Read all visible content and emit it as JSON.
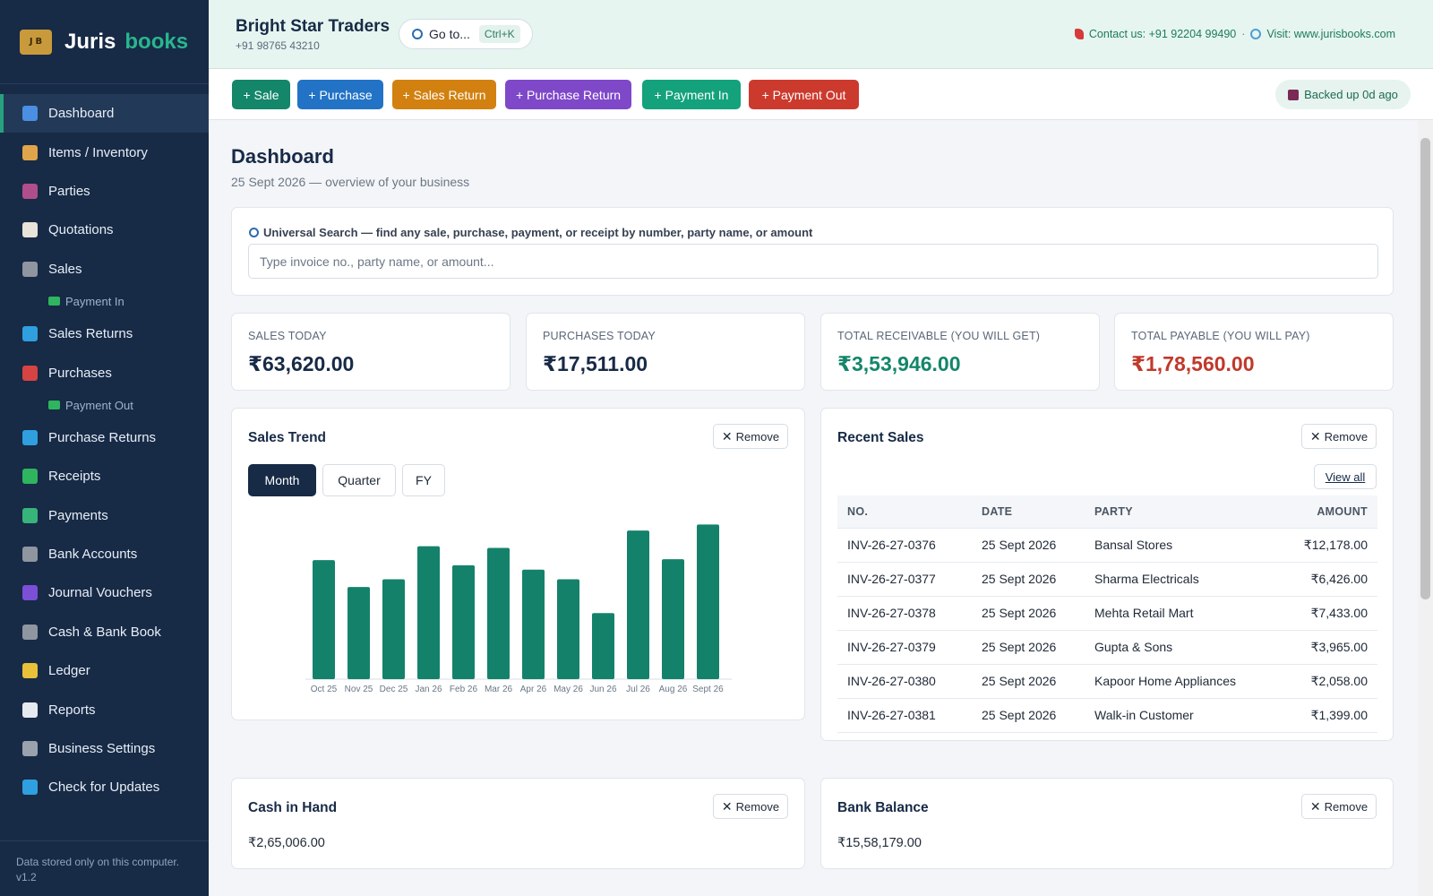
{
  "brand": {
    "name": "Juris",
    "name2": "books"
  },
  "sidebar": {
    "items": [
      {
        "label": "Dashboard",
        "color": "#4b8fe2"
      },
      {
        "label": "Items / Inventory",
        "color": "#e0a54a"
      },
      {
        "label": "Parties",
        "color": "#b04e8c"
      },
      {
        "label": "Quotations",
        "color": "#e8e4da"
      },
      {
        "label": "Sales",
        "color": "#8f96a0"
      },
      {
        "label": "Payment In",
        "sub": true
      },
      {
        "label": "Sales Returns",
        "color": "#2f9fe0"
      },
      {
        "label": "Purchases",
        "color": "#d64343"
      },
      {
        "label": "Payment Out",
        "sub": true
      },
      {
        "label": "Purchase Returns",
        "color": "#2f9fe0"
      },
      {
        "label": "Receipts",
        "color": "#2fb45f"
      },
      {
        "label": "Payments",
        "color": "#37b47a"
      },
      {
        "label": "Bank Accounts",
        "color": "#8f96a0"
      },
      {
        "label": "Journal Vouchers",
        "color": "#7b4fd6"
      },
      {
        "label": "Cash & Bank Book",
        "color": "#8f96a0"
      },
      {
        "label": "Ledger",
        "color": "#e8c03a"
      },
      {
        "label": "Reports",
        "color": "#e6e9ef"
      },
      {
        "label": "Business Settings",
        "color": "#9aa3ad"
      },
      {
        "label": "Check for Updates",
        "color": "#2f9fe0"
      }
    ],
    "footer": "Data stored only on this computer.",
    "version": "v1.2"
  },
  "topbar": {
    "business_name": "Bright Star Traders",
    "business_phone": "+91 98765 43210",
    "goto_label": "Go to...",
    "goto_shortcut": "Ctrl+K",
    "contact": "Contact us: +91 92204 99490",
    "separator": "·",
    "visit": "Visit: www.jurisbooks.com"
  },
  "actions": [
    {
      "label": "+ Sale",
      "color": "#14866a"
    },
    {
      "label": "+ Purchase",
      "color": "#2273c5"
    },
    {
      "label": "+ Sales Return",
      "color": "#d28110"
    },
    {
      "label": "+ Purchase Return",
      "color": "#7f48c9"
    },
    {
      "label": "+ Payment In",
      "color": "#13a27c"
    },
    {
      "label": "+ Payment Out",
      "color": "#cc3a2e"
    }
  ],
  "backup_status": "Backed up 0d ago",
  "page": {
    "title": "Dashboard",
    "subtitle": "25 Sept 2026 — overview of your business"
  },
  "search": {
    "label": "Universal Search — find any sale, purchase, payment, or receipt by number, party name, or amount",
    "placeholder": "Type invoice no., party name, or amount..."
  },
  "kpis": [
    {
      "label": "SALES TODAY",
      "value": "₹63,620.00",
      "color": "#172a46"
    },
    {
      "label": "PURCHASES TODAY",
      "value": "₹17,511.00",
      "color": "#172a46"
    },
    {
      "label": "TOTAL RECEIVABLE (YOU WILL GET)",
      "value": "₹3,53,946.00",
      "color": "#14866a"
    },
    {
      "label": "TOTAL PAYABLE (YOU WILL PAY)",
      "value": "₹1,78,560.00",
      "color": "#c0392b"
    }
  ],
  "sales_trend": {
    "title": "Sales Trend",
    "remove_label": "Remove",
    "tabs": [
      "Month",
      "Quarter",
      "FY"
    ],
    "active_tab": "Month"
  },
  "chart_data": {
    "type": "bar",
    "categories": [
      "Oct 25",
      "Nov 25",
      "Dec 25",
      "Jan 26",
      "Feb 26",
      "Mar 26",
      "Apr 26",
      "May 26",
      "Jun 26",
      "Jul 26",
      "Aug 26",
      "Sept 26"
    ],
    "values": [
      137,
      106,
      115,
      153,
      131,
      151,
      126,
      115,
      76,
      171,
      138,
      178
    ],
    "title": "",
    "xlabel": "",
    "ylabel": "",
    "ylim": [
      0,
      185
    ],
    "bar_color": "#14826a",
    "grid": false,
    "legend": "none"
  },
  "recent_sales": {
    "title": "Recent Sales",
    "remove_label": "Remove",
    "view_all": "View all",
    "columns": [
      "NO.",
      "DATE",
      "PARTY",
      "AMOUNT"
    ],
    "rows": [
      [
        "INV-26-27-0376",
        "25 Sept 2026",
        "Bansal Stores",
        "₹12,178.00"
      ],
      [
        "INV-26-27-0377",
        "25 Sept 2026",
        "Sharma Electricals",
        "₹6,426.00"
      ],
      [
        "INV-26-27-0378",
        "25 Sept 2026",
        "Mehta Retail Mart",
        "₹7,433.00"
      ],
      [
        "INV-26-27-0379",
        "25 Sept 2026",
        "Gupta & Sons",
        "₹3,965.00"
      ],
      [
        "INV-26-27-0380",
        "25 Sept 2026",
        "Kapoor Home Appliances",
        "₹2,058.00"
      ],
      [
        "INV-26-27-0381",
        "25 Sept 2026",
        "Walk-in Customer",
        "₹1,399.00"
      ]
    ]
  },
  "cash_in_hand": {
    "title": "Cash in Hand",
    "value": "₹2,65,006.00",
    "remove_label": "Remove"
  },
  "bank_balance": {
    "title": "Bank Balance",
    "value": "₹15,58,179.00",
    "remove_label": "Remove"
  }
}
